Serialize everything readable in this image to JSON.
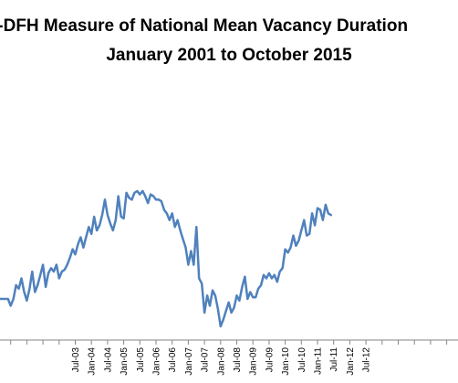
{
  "chart_data": {
    "type": "line",
    "title": "I-DFH Measure of National Mean Vacancy Duration",
    "subtitle": "January 2001 to October 2015",
    "xlabel": "",
    "ylabel": "",
    "grid": false,
    "legend": "none",
    "line_color": "#4F81BD",
    "tick_labels": [
      "Jul-03",
      "Jan-04",
      "Jul-04",
      "Jan-05",
      "Jul-05",
      "Jan-06",
      "Jul-06",
      "Jan-07",
      "Jul-07",
      "Jan-08",
      "Jul-08",
      "Jan-09",
      "Jul-09",
      "Jan-10",
      "Jul-10",
      "Jan-11",
      "Jul-11",
      "Jan-12",
      "Jul-12"
    ],
    "series": [
      {
        "values": [
          16.6,
          16.6,
          16.6,
          16.6,
          16.6,
          16.6,
          16.2,
          16.6,
          17.4,
          17.2,
          17.8,
          17.0,
          16.5,
          17.2,
          18.2,
          17.0,
          17.4,
          18.0,
          18.6,
          17.3,
          18.1,
          18.4,
          18.2,
          18.6,
          17.8,
          18.2,
          18.3,
          18.6,
          19.0,
          19.5,
          19.2,
          19.8,
          20.2,
          19.6,
          20.2,
          20.8,
          20.4,
          21.4,
          20.6,
          20.9,
          21.5,
          22.4,
          21.5,
          21.0,
          20.6,
          21.2,
          22.6,
          21.4,
          21.3,
          22.8,
          22.5,
          22.4,
          22.8,
          22.9,
          22.7,
          22.9,
          22.6,
          22.2,
          22.7,
          22.6,
          22.4,
          22.4,
          22.3,
          21.8,
          21.6,
          21.2,
          21.6,
          20.8,
          21.2,
          20.6,
          20.1,
          19.6,
          18.6,
          19.4,
          18.6,
          20.8,
          17.8,
          17.5,
          15.8,
          16.8,
          16.2,
          17.1,
          16.8,
          16.0,
          15.0,
          15.4,
          15.9,
          16.4,
          15.8,
          16.1,
          16.8,
          16.5,
          17.3,
          17.9,
          16.6,
          17.0,
          16.7,
          16.7,
          17.2,
          17.4,
          18.0,
          17.8,
          18.1,
          17.8,
          18.0,
          17.6,
          18.2,
          18.4,
          19.5,
          19.3,
          19.6,
          20.3,
          19.7,
          20.0,
          20.6,
          21.2,
          20.3,
          20.4,
          21.6,
          20.9,
          21.9,
          21.8,
          21.2,
          22.1,
          21.6,
          21.5
        ]
      }
    ]
  }
}
